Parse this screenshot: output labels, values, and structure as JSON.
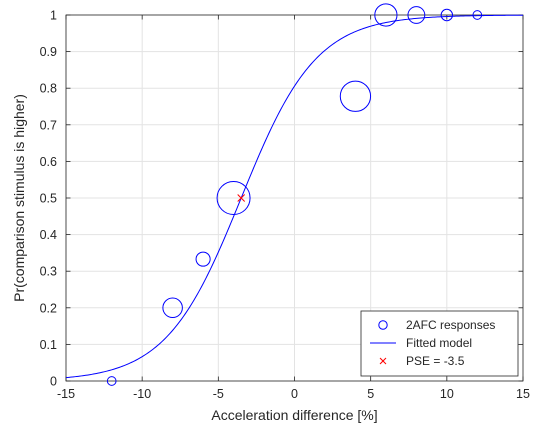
{
  "chart_data": {
    "type": "scatter",
    "xlabel": "Acceleration difference [%]",
    "ylabel": "Pr(comparison stimulus is higher)",
    "xlim": [
      -15,
      15
    ],
    "ylim": [
      0,
      1
    ],
    "xticks": [
      -15,
      -10,
      -5,
      0,
      5,
      10,
      15
    ],
    "yticks": [
      0,
      0.1,
      0.2,
      0.3,
      0.4,
      0.5,
      0.6,
      0.7,
      0.8,
      0.9,
      1
    ],
    "grid": true,
    "legend_position": "bottom-right",
    "series": [
      {
        "name": "2AFC responses",
        "kind": "scatter",
        "marker": "circle",
        "color": "#0000FF",
        "points": [
          {
            "x": -12,
            "y": 0,
            "n": 1
          },
          {
            "x": -8,
            "y": 0.2,
            "n": 5
          },
          {
            "x": -6,
            "y": 0.333,
            "n": 3
          },
          {
            "x": -4,
            "y": 0.5,
            "n": 10
          },
          {
            "x": 4,
            "y": 0.778,
            "n": 9
          },
          {
            "x": 6,
            "y": 1,
            "n": 6
          },
          {
            "x": 8,
            "y": 1,
            "n": 4
          },
          {
            "x": 10,
            "y": 1,
            "n": 2
          },
          {
            "x": 12,
            "y": 1,
            "n": 1
          }
        ]
      },
      {
        "name": "Fitted model",
        "kind": "line",
        "color": "#0000FF",
        "model": "logistic",
        "mu": -3.5,
        "scale": 2.46
      },
      {
        "name": "PSE = -3.5",
        "kind": "marker",
        "marker": "x",
        "color": "#FF0000",
        "points": [
          {
            "x": -3.5,
            "y": 0.5
          }
        ]
      }
    ]
  }
}
